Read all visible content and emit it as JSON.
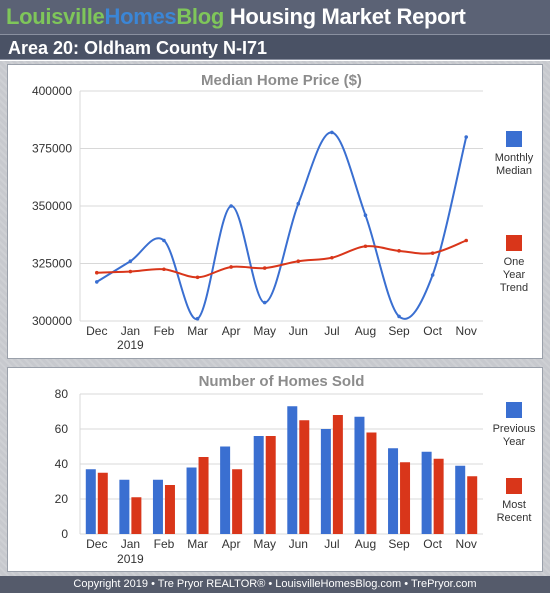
{
  "header": {
    "brand_part1": "Louisville",
    "brand_part2": "Homes",
    "brand_part3": "Blog",
    "report_title": "Housing Market Report",
    "area_title": "Area 20: Oldham County N-I71"
  },
  "footer": {
    "text": "Copyright 2019 • Tre Pryor REALTOR® • LouisvilleHomesBlog.com • TrePryor.com"
  },
  "colors": {
    "blue": "#3a6fd1",
    "red": "#d9361a",
    "grid": "#d8d8d8",
    "title": "#8c8c8c",
    "axis_text": "#333333"
  },
  "chart_data": [
    {
      "type": "line",
      "title": "Median Home Price ($)",
      "categories": [
        "Dec",
        "Jan",
        "Feb",
        "Mar",
        "Apr",
        "May",
        "Jun",
        "Jul",
        "Aug",
        "Sep",
        "Oct",
        "Nov"
      ],
      "year_label": "2019",
      "ylim": [
        300000,
        400000
      ],
      "yticks": [
        300000,
        325000,
        350000,
        375000,
        400000
      ],
      "ytick_labels": [
        "300000",
        "325000",
        "350000",
        "375000",
        "400000"
      ],
      "grid": true,
      "legend_position": "right",
      "series": [
        {
          "name_lines": [
            "Monthly",
            "Median"
          ],
          "color": "#3a6fd1",
          "smooth": true,
          "values": [
            317000,
            326000,
            335000,
            301000,
            350000,
            308000,
            351000,
            382000,
            346000,
            302000,
            320000,
            380000
          ]
        },
        {
          "name_lines": [
            "One",
            "Year",
            "Trend"
          ],
          "color": "#d9361a",
          "smooth": true,
          "values": [
            321000,
            321500,
            322500,
            319000,
            323500,
            323000,
            326000,
            327500,
            332500,
            330500,
            329500,
            335000
          ]
        }
      ]
    },
    {
      "type": "bar",
      "title": "Number of Homes Sold",
      "categories": [
        "Dec",
        "Jan",
        "Feb",
        "Mar",
        "Apr",
        "May",
        "Jun",
        "Jul",
        "Aug",
        "Sep",
        "Oct",
        "Nov"
      ],
      "year_label": "2019",
      "ylim": [
        0,
        80
      ],
      "yticks": [
        0,
        20,
        40,
        60,
        80
      ],
      "ytick_labels": [
        "0",
        "20",
        "40",
        "60",
        "80"
      ],
      "grid": true,
      "legend_position": "right",
      "series": [
        {
          "name_lines": [
            "Previous",
            "Year"
          ],
          "color": "#3a6fd1",
          "values": [
            37,
            31,
            31,
            38,
            50,
            56,
            73,
            60,
            67,
            49,
            47,
            39
          ]
        },
        {
          "name_lines": [
            "Most",
            "Recent"
          ],
          "color": "#d9361a",
          "values": [
            35,
            21,
            28,
            44,
            37,
            56,
            65,
            68,
            58,
            41,
            43,
            33
          ]
        }
      ]
    }
  ]
}
